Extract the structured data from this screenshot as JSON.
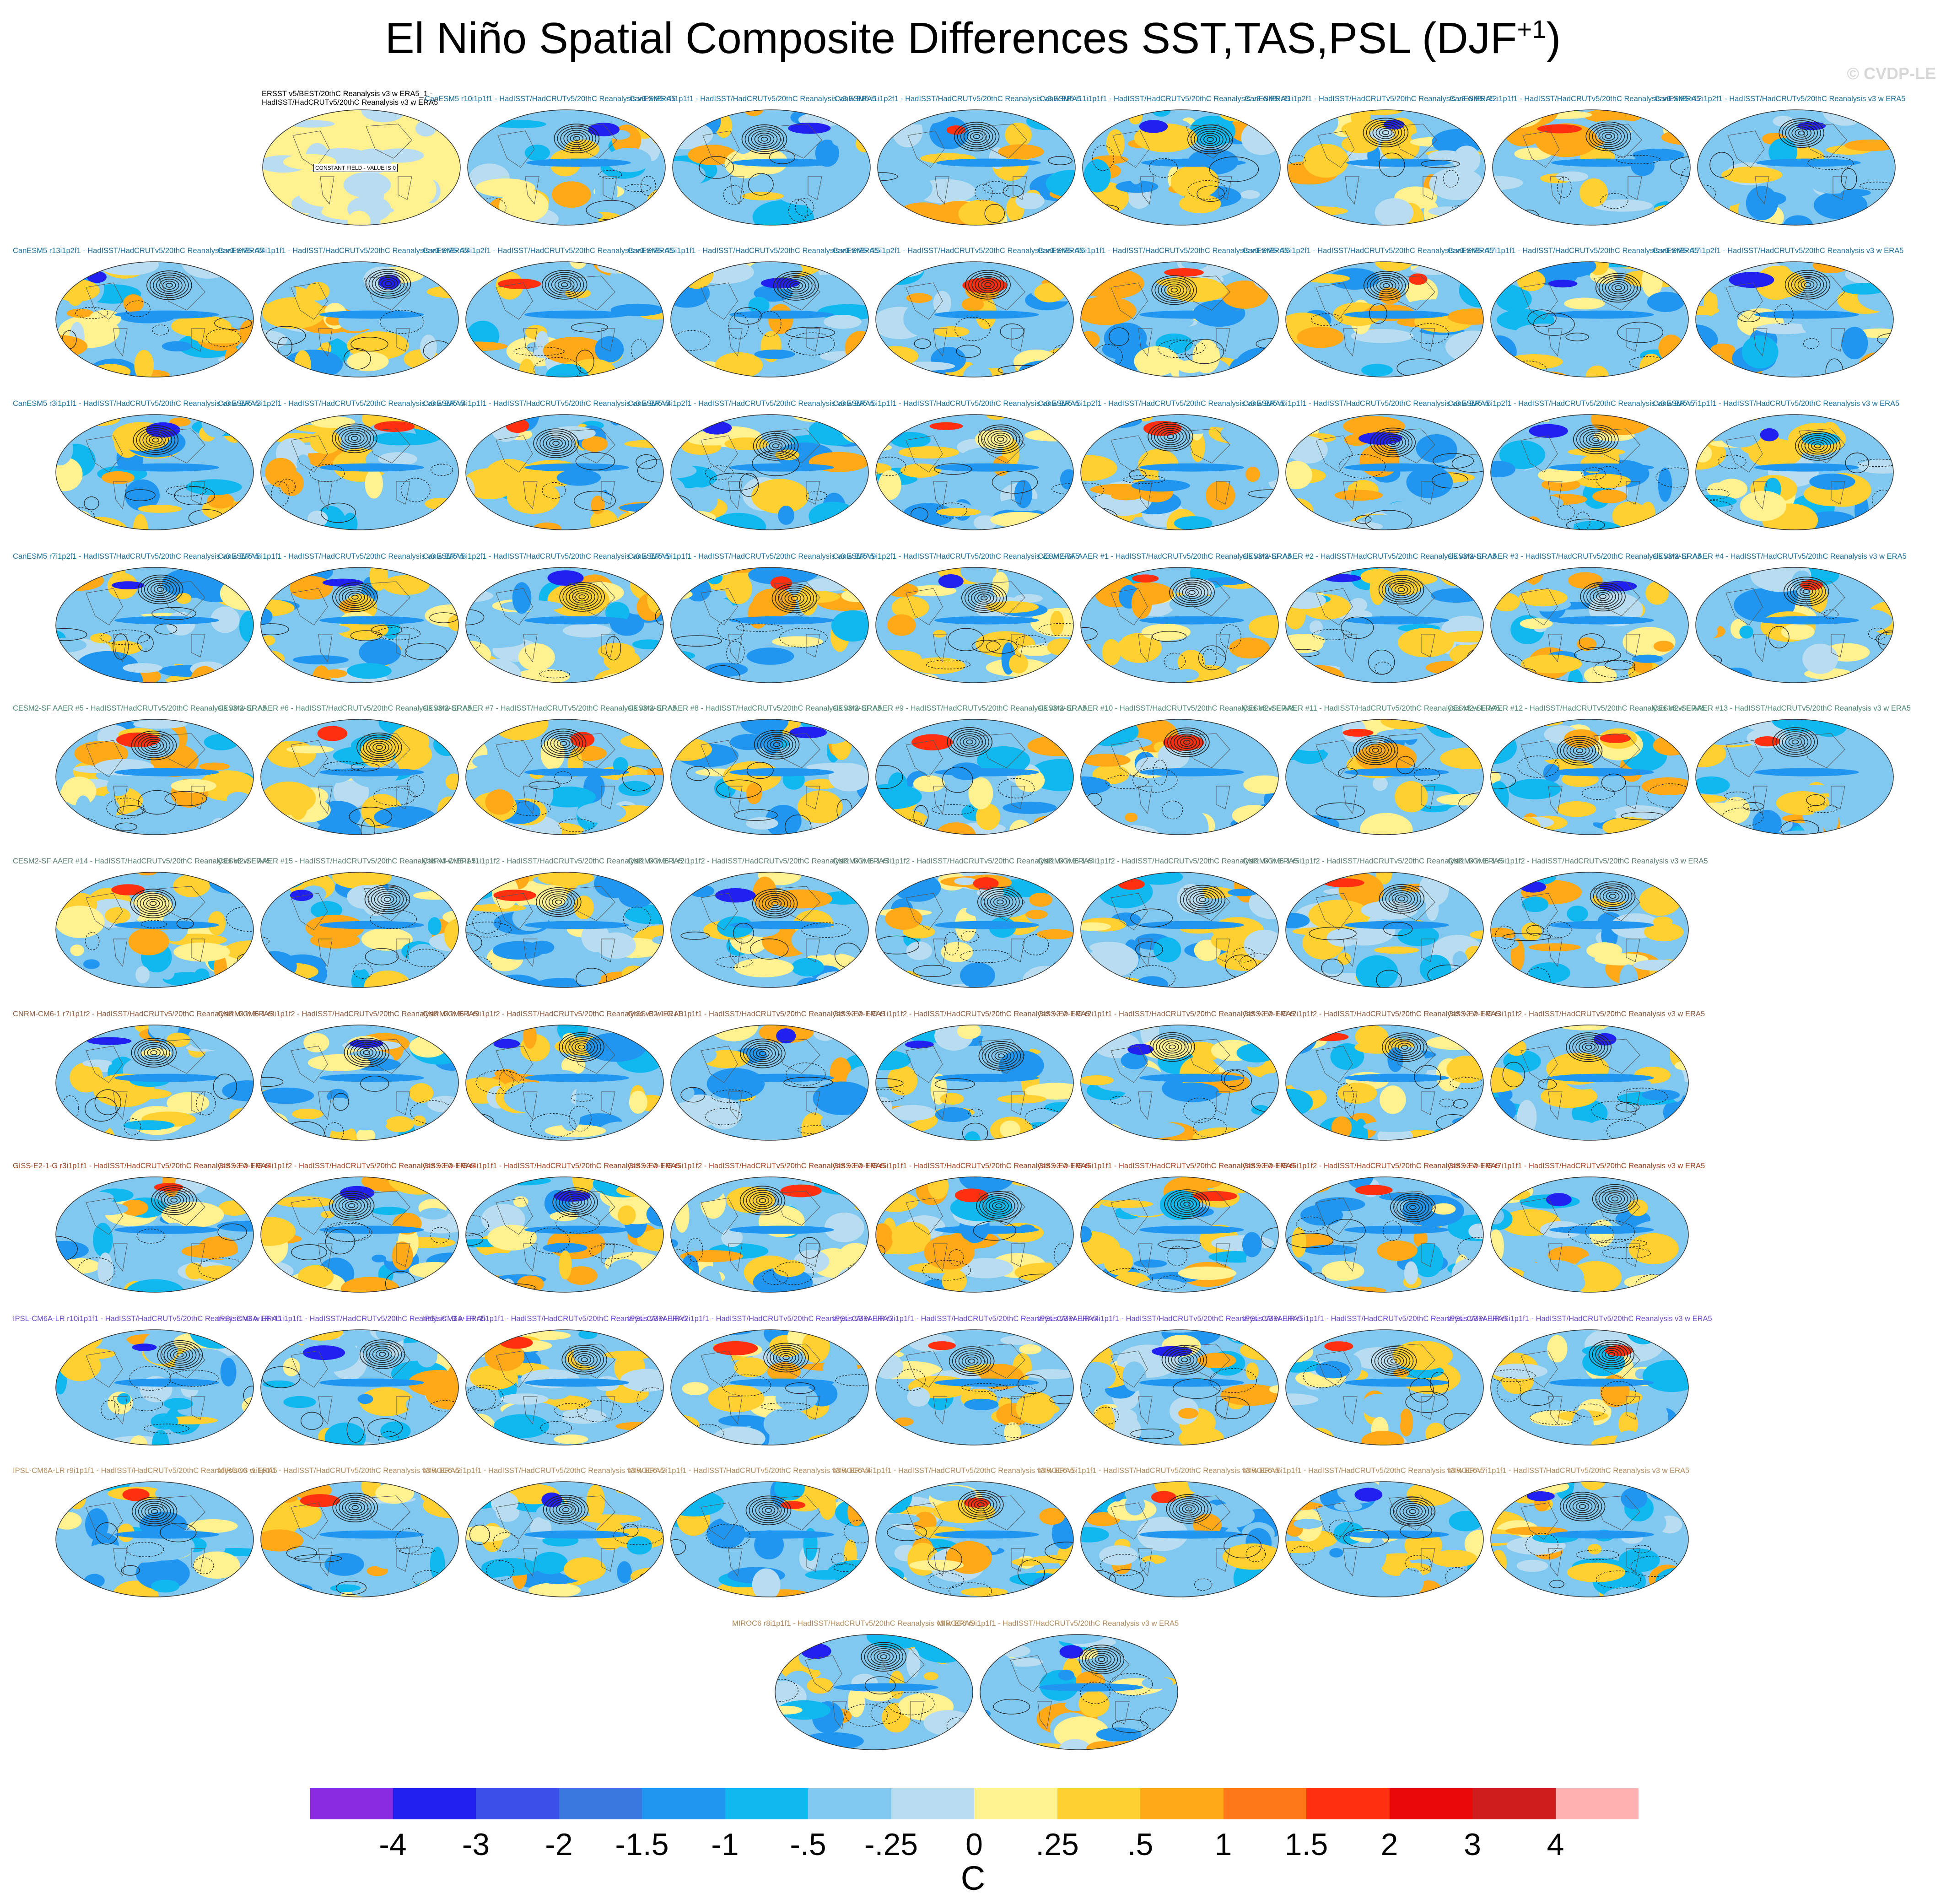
{
  "title": "El Niño Spatial Composite Differences SST,TAS,PSL (DJF",
  "title_superscript": "+1",
  "title_close": ")",
  "watermark": "© CVDP-LE",
  "observations": {
    "label_line1": "ERSST v5/BEST/20thC Reanalysis v3 w ERA5_1 -",
    "label_line2": "HadISST/HadCRUTv5/20thC Reanalysis v3 w ERA5",
    "constant_field": "CONSTANT FIELD - VALUE IS 0"
  },
  "rows": [
    {
      "color": "#1a6f9a",
      "labels": [
        "CanESM5 r10i1p1f1 - HadISST/HadCRUTv5/20thC Reanalysis v3 w ERA5",
        "CanESM5 r1i1p1f1 - HadISST/HadCRUTv5/20thC Reanalysis v3 w ERA5",
        "CanESM5 r1i1p2f1 - HadISST/HadCRUTv5/20thC Reanalysis v3 w ERA5",
        "CanESM5 r11i1p1f1 - HadISST/HadCRUTv5/20thC Reanalysis v3 w ERA5",
        "CanESM5 r11i1p2f1 - HadISST/HadCRUTv5/20thC Reanalysis v3 w ERA5",
        "CanESM5 r12i1p1f1 - HadISST/HadCRUTv5/20thC Reanalysis v3 w ERA5",
        "CanESM5 r12i1p2f1 - HadISST/HadCRUTv5/20thC Reanalysis v3 w ERA5"
      ]
    },
    {
      "color": "#1a6f9a",
      "labels": [
        "CanESM5 r13i1p2f1 - HadISST/HadCRUTv5/20thC Reanalysis v3 w ERA5",
        "CanESM5 r14i1p1f1 - HadISST/HadCRUTv5/20thC Reanalysis v3 w ERA5",
        "CanESM5 r14i1p2f1 - HadISST/HadCRUTv5/20thC Reanalysis v3 w ERA5",
        "CanESM5 r15i1p1f1 - HadISST/HadCRUTv5/20thC Reanalysis v3 w ERA5",
        "CanESM5 r15i1p2f1 - HadISST/HadCRUTv5/20thC Reanalysis v3 w ERA5",
        "CanESM5 r16i1p1f1 - HadISST/HadCRUTv5/20thC Reanalysis v3 w ERA5",
        "CanESM5 r16i1p2f1 - HadISST/HadCRUTv5/20thC Reanalysis v3 w ERA5",
        "CanESM5 r17i1p1f1 - HadISST/HadCRUTv5/20thC Reanalysis v3 w ERA5",
        "CanESM5 r17i1p2f1 - HadISST/HadCRUTv5/20thC Reanalysis v3 w ERA5"
      ]
    },
    {
      "color": "#1a6f9a",
      "labels": [
        "CanESM5 r3i1p1f1 - HadISST/HadCRUTv5/20thC Reanalysis v3 w ERA5",
        "CanESM5 r3i1p2f1 - HadISST/HadCRUTv5/20thC Reanalysis v3 w ERA5",
        "CanESM5 r4i1p1f1 - HadISST/HadCRUTv5/20thC Reanalysis v3 w ERA5",
        "CanESM5 r4i1p2f1 - HadISST/HadCRUTv5/20thC Reanalysis v3 w ERA5",
        "CanESM5 r5i1p1f1 - HadISST/HadCRUTv5/20thC Reanalysis v3 w ERA5",
        "CanESM5 r5i1p2f1 - HadISST/HadCRUTv5/20thC Reanalysis v3 w ERA5",
        "CanESM5 r6i1p1f1 - HadISST/HadCRUTv5/20thC Reanalysis v3 w ERA5",
        "CanESM5 r6i1p2f1 - HadISST/HadCRUTv5/20thC Reanalysis v3 w ERA5",
        "CanESM5 r7i1p1f1 - HadISST/HadCRUTv5/20thC Reanalysis v3 w ERA5"
      ]
    },
    {
      "color": "#1a6f9a",
      "labels": [
        "CanESM5 r7i1p2f1 - HadISST/HadCRUTv5/20thC Reanalysis v3 w ERA5",
        "CanESM5 r8i1p1f1 - HadISST/HadCRUTv5/20thC Reanalysis v3 w ERA5",
        "CanESM5 r8i1p2f1 - HadISST/HadCRUTv5/20thC Reanalysis v3 w ERA5",
        "CanESM5 r9i1p1f1 - HadISST/HadCRUTv5/20thC Reanalysis v3 w ERA5",
        "CanESM5 r9i1p2f1 - HadISST/HadCRUTv5/20thC Reanalysis v3 w ERA5",
        "CESM2-SF AAER #1 - HadISST/HadCRUTv5/20thC Reanalysis v3 w ERA5",
        "CESM2-SF AAER #2 - HadISST/HadCRUTv5/20thC Reanalysis v3 w ERA5",
        "CESM2-SF AAER #3 - HadISST/HadCRUTv5/20thC Reanalysis v3 w ERA5",
        "CESM2-SF AAER #4 - HadISST/HadCRUTv5/20thC Reanalysis v3 w ERA5"
      ]
    },
    {
      "color": "#4f8a76",
      "labels": [
        "CESM2-SF AAER #5 - HadISST/HadCRUTv5/20thC Reanalysis v3 w ERA5",
        "CESM2-SF AAER #6 - HadISST/HadCRUTv5/20thC Reanalysis v3 w ERA5",
        "CESM2-SF AAER #7 - HadISST/HadCRUTv5/20thC Reanalysis v3 w ERA5",
        "CESM2-SF AAER #8 - HadISST/HadCRUTv5/20thC Reanalysis v3 w ERA5",
        "CESM2-SF AAER #9 - HadISST/HadCRUTv5/20thC Reanalysis v3 w ERA5",
        "CESM2-SF AAER #10 - HadISST/HadCRUTv5/20thC Reanalysis v3 w ERA5",
        "CESM2-SF AAER #11 - HadISST/HadCRUTv5/20thC Reanalysis v3 w ERA5",
        "CESM2-SF AAER #12 - HadISST/HadCRUTv5/20thC Reanalysis v3 w ERA5",
        "CESM2-SF AAER #13 - HadISST/HadCRUTv5/20thC Reanalysis v3 w ERA5"
      ]
    },
    {
      "color": "#5b7f70",
      "labels": [
        "CESM2-SF AAER #14 - HadISST/HadCRUTv5/20thC Reanalysis v3 w ERA5",
        "CESM2-SF AAER #15 - HadISST/HadCRUTv5/20thC Reanalysis v3 w ERA5",
        "CNRM-CM6-1 r1i1p1f2 - HadISST/HadCRUTv5/20thC Reanalysis v3 w ERA5",
        "CNRM-CM6-1 r2i1p1f2 - HadISST/HadCRUTv5/20thC Reanalysis v3 w ERA5",
        "CNRM-CM6-1 r3i1p1f2 - HadISST/HadCRUTv5/20thC Reanalysis v3 w ERA5",
        "CNRM-CM6-1 r4i1p1f2 - HadISST/HadCRUTv5/20thC Reanalysis v3 w ERA5",
        "CNRM-CM6-1 r5i1p1f2 - HadISST/HadCRUTv5/20thC Reanalysis v3 w ERA5",
        "CNRM-CM6-1 r6i1p1f2 - HadISST/HadCRUTv5/20thC Reanalysis v3 w ERA5"
      ]
    },
    {
      "color": "#8c5a3c",
      "labels": [
        "CNRM-CM6-1 r7i1p1f2 - HadISST/HadCRUTv5/20thC Reanalysis v3 w ERA5",
        "CNRM-CM6-1 r8i1p1f2 - HadISST/HadCRUTv5/20thC Reanalysis v3 w ERA5",
        "CNRM-CM6-1 r9i1p1f2 - HadISST/HadCRUTv5/20thC Reanalysis v3 w ERA5",
        "GISS-E2-1-G r1i1p1f1 - HadISST/HadCRUTv5/20thC Reanalysis v3 w ERA5",
        "GISS-E2-1-G r1i1p1f2 - HadISST/HadCRUTv5/20thC Reanalysis v3 w ERA5",
        "GISS-E2-1-G r2i1p1f1 - HadISST/HadCRUTv5/20thC Reanalysis v3 w ERA5",
        "GISS-E2-1-G r2i1p1f2 - HadISST/HadCRUTv5/20thC Reanalysis v3 w ERA5",
        "GISS-E2-1-G r3i1p1f2 - HadISST/HadCRUTv5/20thC Reanalysis v3 w ERA5"
      ]
    },
    {
      "color": "#a0421e",
      "labels": [
        "GISS-E2-1-G r3i1p1f1 - HadISST/HadCRUTv5/20thC Reanalysis v3 w ERA5",
        "GISS-E2-1-G r4i1p1f2 - HadISST/HadCRUTv5/20thC Reanalysis v3 w ERA5",
        "GISS-E2-1-G r4i1p1f1 - HadISST/HadCRUTv5/20thC Reanalysis v3 w ERA5",
        "GISS-E2-1-G r5i1p1f2 - HadISST/HadCRUTv5/20thC Reanalysis v3 w ERA5",
        "GISS-E2-1-G r5i1p1f1 - HadISST/HadCRUTv5/20thC Reanalysis v3 w ERA5",
        "GISS-E2-1-G r6i1p1f1 - HadISST/HadCRUTv5/20thC Reanalysis v3 w ERA5",
        "GISS-E2-1-G r6i1p1f2 - HadISST/HadCRUTv5/20thC Reanalysis v3 w ERA5",
        "GISS-E2-1-G r7i1p1f1 - HadISST/HadCRUTv5/20thC Reanalysis v3 w ERA5"
      ]
    },
    {
      "color": "#6a4bc4",
      "labels": [
        "IPSL-CM6A-LR r10i1p1f1 - HadISST/HadCRUTv5/20thC Reanalysis v3 w ERA5",
        "IPSL-CM6A-LR r11i1p1f1 - HadISST/HadCRUTv5/20thC Reanalysis v3 w ERA5",
        "IPSL-CM6A-LR r1i1p1f1 - HadISST/HadCRUTv5/20thC Reanalysis v3 w ERA5",
        "IPSL-CM6A-LR r2i1p1f1 - HadISST/HadCRUTv5/20thC Reanalysis v3 w ERA5",
        "IPSL-CM6A-LR r3i1p1f1 - HadISST/HadCRUTv5/20thC Reanalysis v3 w ERA5",
        "IPSL-CM6A-LR r4i1p1f1 - HadISST/HadCRUTv5/20thC Reanalysis v3 w ERA5",
        "IPSL-CM6A-LR r5i1p1f1 - HadISST/HadCRUTv5/20thC Reanalysis v3 w ERA5",
        "IPSL-CM6A-LR r6i1p1f1 - HadISST/HadCRUTv5/20thC Reanalysis v3 w ERA5"
      ]
    },
    {
      "color": "#b08a5a",
      "labels": [
        "IPSL-CM6A-LR r9i1p1f1 - HadISST/HadCRUTv5/20thC Reanalysis v3 w ERA5",
        "MIROC6 r1i1p1f1 - HadISST/HadCRUTv5/20thC Reanalysis v3 w ERA5",
        "MIROC6 r2i1p1f1 - HadISST/HadCRUTv5/20thC Reanalysis v3 w ERA5",
        "MIROC6 r3i1p1f1 - HadISST/HadCRUTv5/20thC Reanalysis v3 w ERA5",
        "MIROC6 r4i1p1f1 - HadISST/HadCRUTv5/20thC Reanalysis v3 w ERA5",
        "MIROC6 r5i1p1f1 - HadISST/HadCRUTv5/20thC Reanalysis v3 w ERA5",
        "MIROC6 r6i1p1f1 - HadISST/HadCRUTv5/20thC Reanalysis v3 w ERA5",
        "MIROC6 r7i1p1f1 - HadISST/HadCRUTv5/20thC Reanalysis v3 w ERA5"
      ]
    },
    {
      "color": "#b08a5a",
      "labels": [
        "MIROC6 r8i1p1f1 - HadISST/HadCRUTv5/20thC Reanalysis v3 w ERA5",
        "MIROC6 r9i1p1f1 - HadISST/HadCRUTv5/20thC Reanalysis v3 w ERA5"
      ]
    }
  ],
  "colorbar": {
    "colors": [
      "#8a2be2",
      "#2020f0",
      "#3a50e8",
      "#3a78e0",
      "#2096f0",
      "#10b8f0",
      "#80c8f0",
      "#b8dcf0",
      "#fff090",
      "#ffd030",
      "#ffa818",
      "#ff7818",
      "#ff3010",
      "#e80808",
      "#cc1c1c",
      "#ffb0b0"
    ],
    "ticks": [
      "-4",
      "-3",
      "-2",
      "-1.5",
      "-1",
      "-.5",
      "-.25",
      "0",
      ".25",
      ".5",
      "1",
      "1.5",
      "2",
      "3",
      "4"
    ],
    "units": "C"
  }
}
